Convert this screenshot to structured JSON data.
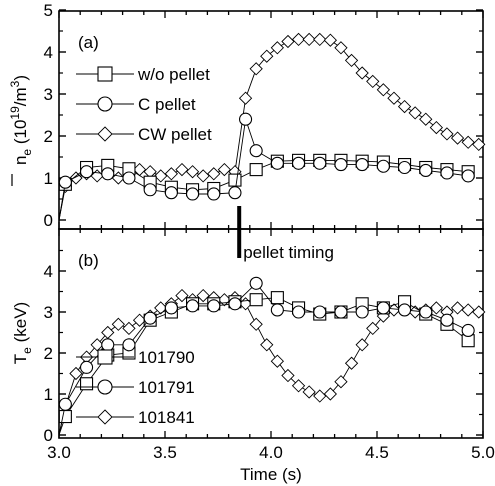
{
  "chart_data": [
    {
      "type": "line",
      "panel_label": "(a)",
      "ylabel_main": "n",
      "ylabel_sub": "e",
      "ylabel_unit_prefix": " (10",
      "ylabel_unit_exp": "19",
      "ylabel_unit_mid": "/m",
      "ylabel_unit_exp2": "3",
      "ylabel_unit_suffix": ")",
      "xlim": [
        3.0,
        5.0
      ],
      "ylim": [
        0,
        5
      ],
      "yticks": [
        "0",
        "1",
        "2",
        "3",
        "4",
        "5"
      ],
      "legend": [
        "w/o pellet",
        "C pellet",
        "CW pellet"
      ],
      "series": [
        {
          "name": "w/o pellet",
          "marker": "square",
          "x": [
            3.03,
            3.13,
            3.23,
            3.33,
            3.43,
            3.53,
            3.63,
            3.73,
            3.83,
            3.93,
            4.03,
            4.13,
            4.23,
            4.33,
            4.43,
            4.53,
            4.63,
            4.73,
            4.83,
            4.93
          ],
          "y": [
            0.85,
            1.25,
            1.3,
            1.22,
            0.9,
            0.78,
            0.72,
            0.75,
            0.95,
            1.2,
            1.4,
            1.42,
            1.42,
            1.42,
            1.4,
            1.38,
            1.32,
            1.25,
            1.2,
            1.15
          ]
        },
        {
          "name": "C pellet",
          "marker": "circle",
          "x": [
            3.03,
            3.13,
            3.23,
            3.33,
            3.43,
            3.53,
            3.63,
            3.73,
            3.83,
            3.88,
            3.93,
            4.03,
            4.13,
            4.23,
            4.33,
            4.43,
            4.53,
            4.63,
            4.73,
            4.83,
            4.93
          ],
          "y": [
            0.9,
            1.15,
            1.1,
            1.0,
            0.72,
            0.65,
            0.62,
            0.62,
            0.65,
            2.4,
            1.65,
            1.35,
            1.35,
            1.35,
            1.32,
            1.32,
            1.28,
            1.25,
            1.18,
            1.12,
            1.05
          ]
        },
        {
          "name": "CW pellet",
          "marker": "diamond",
          "x": [
            3.03,
            3.08,
            3.13,
            3.18,
            3.23,
            3.28,
            3.33,
            3.38,
            3.43,
            3.48,
            3.53,
            3.58,
            3.63,
            3.68,
            3.73,
            3.78,
            3.83,
            3.88,
            3.93,
            3.98,
            4.03,
            4.08,
            4.13,
            4.18,
            4.23,
            4.28,
            4.33,
            4.38,
            4.43,
            4.48,
            4.53,
            4.58,
            4.63,
            4.68,
            4.73,
            4.78,
            4.83,
            4.88,
            4.93,
            4.98
          ],
          "y": [
            0.8,
            1.0,
            1.1,
            1.05,
            1.15,
            1.0,
            1.1,
            1.2,
            1.15,
            1.05,
            1.1,
            1.2,
            1.15,
            1.05,
            1.1,
            1.2,
            1.15,
            2.9,
            3.6,
            3.9,
            4.1,
            4.25,
            4.3,
            4.3,
            4.3,
            4.28,
            4.1,
            3.8,
            3.5,
            3.3,
            3.1,
            2.9,
            2.7,
            2.55,
            2.4,
            2.2,
            2.05,
            1.95,
            1.85,
            1.8
          ]
        }
      ]
    },
    {
      "type": "line",
      "panel_label": "(b)",
      "ylabel_main": "T",
      "ylabel_sub": "e",
      "ylabel_unit": " (keV)",
      "xlabel": "Time (s)",
      "xlim": [
        3.0,
        5.0
      ],
      "ylim": [
        0,
        5
      ],
      "xticks": [
        "3.0",
        "3.5",
        "4.0",
        "4.5",
        "5.0"
      ],
      "yticks": [
        "0",
        "1",
        "2",
        "3",
        "4"
      ],
      "legend": [
        "101790",
        "101791",
        "101841"
      ],
      "annotation": "pellet timing",
      "pellet_time": 3.85,
      "series": [
        {
          "name": "101790",
          "marker": "square",
          "x": [
            3.03,
            3.13,
            3.23,
            3.33,
            3.43,
            3.53,
            3.63,
            3.73,
            3.83,
            3.93,
            4.03,
            4.13,
            4.23,
            4.33,
            4.43,
            4.53,
            4.63,
            4.73,
            4.83,
            4.93
          ],
          "y": [
            0.45,
            1.25,
            1.95,
            2.0,
            2.8,
            3.0,
            3.2,
            3.2,
            3.25,
            3.3,
            3.35,
            3.1,
            2.95,
            3.0,
            3.2,
            3.1,
            3.25,
            2.95,
            2.7,
            2.3
          ]
        },
        {
          "name": "101791",
          "marker": "circle",
          "x": [
            3.03,
            3.13,
            3.23,
            3.33,
            3.43,
            3.53,
            3.63,
            3.73,
            3.83,
            3.93,
            4.03,
            4.13,
            4.23,
            4.33,
            4.43,
            4.53,
            4.63,
            4.73,
            4.83,
            4.93
          ],
          "y": [
            0.75,
            1.65,
            2.2,
            2.2,
            2.85,
            3.1,
            3.15,
            3.15,
            3.2,
            3.7,
            3.05,
            3.0,
            3.0,
            3.0,
            3.0,
            3.1,
            3.05,
            3.0,
            2.8,
            2.55
          ]
        },
        {
          "name": "101841",
          "marker": "diamond",
          "x": [
            3.03,
            3.08,
            3.13,
            3.18,
            3.23,
            3.28,
            3.33,
            3.38,
            3.43,
            3.48,
            3.53,
            3.58,
            3.63,
            3.68,
            3.73,
            3.78,
            3.83,
            3.88,
            3.93,
            3.98,
            4.03,
            4.08,
            4.13,
            4.18,
            4.23,
            4.28,
            4.33,
            4.38,
            4.43,
            4.48,
            4.53,
            4.58,
            4.63,
            4.68,
            4.73,
            4.78,
            4.83,
            4.88,
            4.93,
            4.98
          ],
          "y": [
            0.7,
            1.5,
            1.9,
            2.2,
            2.5,
            2.7,
            2.6,
            2.8,
            2.9,
            3.1,
            3.2,
            3.4,
            3.3,
            3.4,
            3.35,
            3.3,
            3.35,
            3.2,
            2.7,
            2.2,
            1.8,
            1.45,
            1.2,
            1.05,
            0.95,
            1.0,
            1.3,
            1.75,
            2.2,
            2.6,
            2.9,
            3.05,
            3.1,
            3.0,
            3.05,
            3.1,
            3.0,
            3.1,
            3.05,
            3.0
          ]
        }
      ]
    }
  ]
}
